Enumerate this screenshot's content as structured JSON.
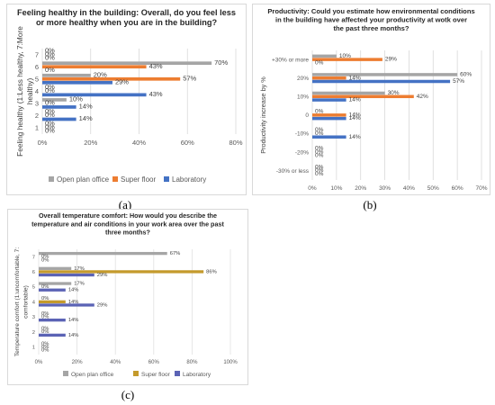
{
  "captions": [
    "(a)",
    "(b)",
    "(c)"
  ],
  "chart_data": [
    {
      "type": "bar",
      "orientation": "horizontal",
      "title": "Feeling healthy in the building: Overall, do you feel less or more healthy when you are in the building?",
      "ylabel": "Feeling healthy (1:Less healthy, 7:More healthy)",
      "categories": [
        "7",
        "6",
        "5",
        "4",
        "3",
        "2",
        "1"
      ],
      "series": [
        {
          "name": "Open plan office",
          "color": "#a5a5a5",
          "values": [
            0,
            70,
            20,
            0,
            10,
            0,
            0
          ],
          "labels": [
            "0%",
            "70%",
            "20%",
            "0%",
            "10%",
            "0%",
            "0%"
          ]
        },
        {
          "name": "Super floor",
          "color": "#ed7d31",
          "values": [
            0,
            43,
            57,
            0,
            0,
            0,
            0
          ],
          "labels": [
            "0%",
            "43%",
            "57%",
            "0%",
            "0%",
            "0%",
            "0%"
          ]
        },
        {
          "name": "Laboratory",
          "color": "#4472c4",
          "values": [
            0,
            0,
            29,
            43,
            14,
            14,
            0
          ],
          "labels": [
            "0%",
            "0%",
            "29%",
            "43%",
            "14%",
            "14%",
            "0%"
          ]
        }
      ],
      "xlim": [
        0,
        80
      ],
      "xticks": [
        "0%",
        "20%",
        "40%",
        "60%",
        "80%"
      ],
      "grid": true,
      "legend": "bottom"
    },
    {
      "type": "bar",
      "orientation": "horizontal",
      "title": "Productivity: Could you estimate how environmental conditions in the building have affected your productivity at wotk over the past three months?",
      "ylabel": "Productivity increase by %",
      "categories": [
        "+30% or more",
        "20%",
        "10%",
        "0",
        "-10%",
        "-20%",
        "-30% or less"
      ],
      "series": [
        {
          "name": "Open plan office",
          "color": "#a5a5a5",
          "values": [
            10,
            60,
            30,
            0,
            0,
            0,
            0
          ],
          "labels": [
            "10%",
            "60%",
            "30%",
            "0%",
            "0%",
            "0%",
            "0%"
          ]
        },
        {
          "name": "Super floor",
          "color": "#ed7d31",
          "values": [
            29,
            14,
            42,
            14,
            0,
            0,
            0
          ],
          "labels": [
            "29%",
            "14%",
            "42%",
            "14%",
            "0%",
            "0%",
            "0%"
          ]
        },
        {
          "name": "Laboratory",
          "color": "#4472c4",
          "values": [
            0,
            57,
            14,
            14,
            14,
            0,
            0
          ],
          "labels": [
            "0%",
            "57%",
            "14%",
            "14%",
            "14%",
            "0%",
            "0%"
          ]
        }
      ],
      "xlim": [
        0,
        70
      ],
      "xticks": [
        "0%",
        "10%",
        "20%",
        "30%",
        "40%",
        "50%",
        "60%",
        "70%"
      ],
      "grid": true,
      "legend": "bottom"
    },
    {
      "type": "bar",
      "orientation": "horizontal",
      "title": "Overall temperature comfort: How would you describe the temperature and air conditions in your work area over the past three months?",
      "ylabel": "Temperature comfort (1:uncomfortable, 7: comfortable)",
      "categories": [
        "7",
        "6",
        "5",
        "4",
        "3",
        "2",
        "1"
      ],
      "series": [
        {
          "name": "Open plan office",
          "color": "#a5a5a5",
          "values": [
            67,
            17,
            17,
            0,
            0,
            0,
            0
          ],
          "labels": [
            "67%",
            "17%",
            "17%",
            "0%",
            "0%",
            "0%",
            "0%"
          ]
        },
        {
          "name": "Super floor",
          "color": "#c49a2c",
          "values": [
            0,
            86,
            0,
            14,
            0,
            0,
            0
          ],
          "labels": [
            "0%",
            "86%",
            "0%",
            "14%",
            "0%",
            "0%",
            "0%"
          ]
        },
        {
          "name": "Laboratory",
          "color": "#5b63b5",
          "values": [
            0,
            29,
            14,
            29,
            14,
            14,
            0
          ],
          "labels": [
            "0%",
            "29%",
            "14%",
            "29%",
            "14%",
            "14%",
            "0%"
          ]
        }
      ],
      "xlim": [
        0,
        100
      ],
      "xticks": [
        "0%",
        "20%",
        "40%",
        "60%",
        "80%",
        "100%"
      ],
      "grid": true,
      "legend": "bottom"
    }
  ]
}
